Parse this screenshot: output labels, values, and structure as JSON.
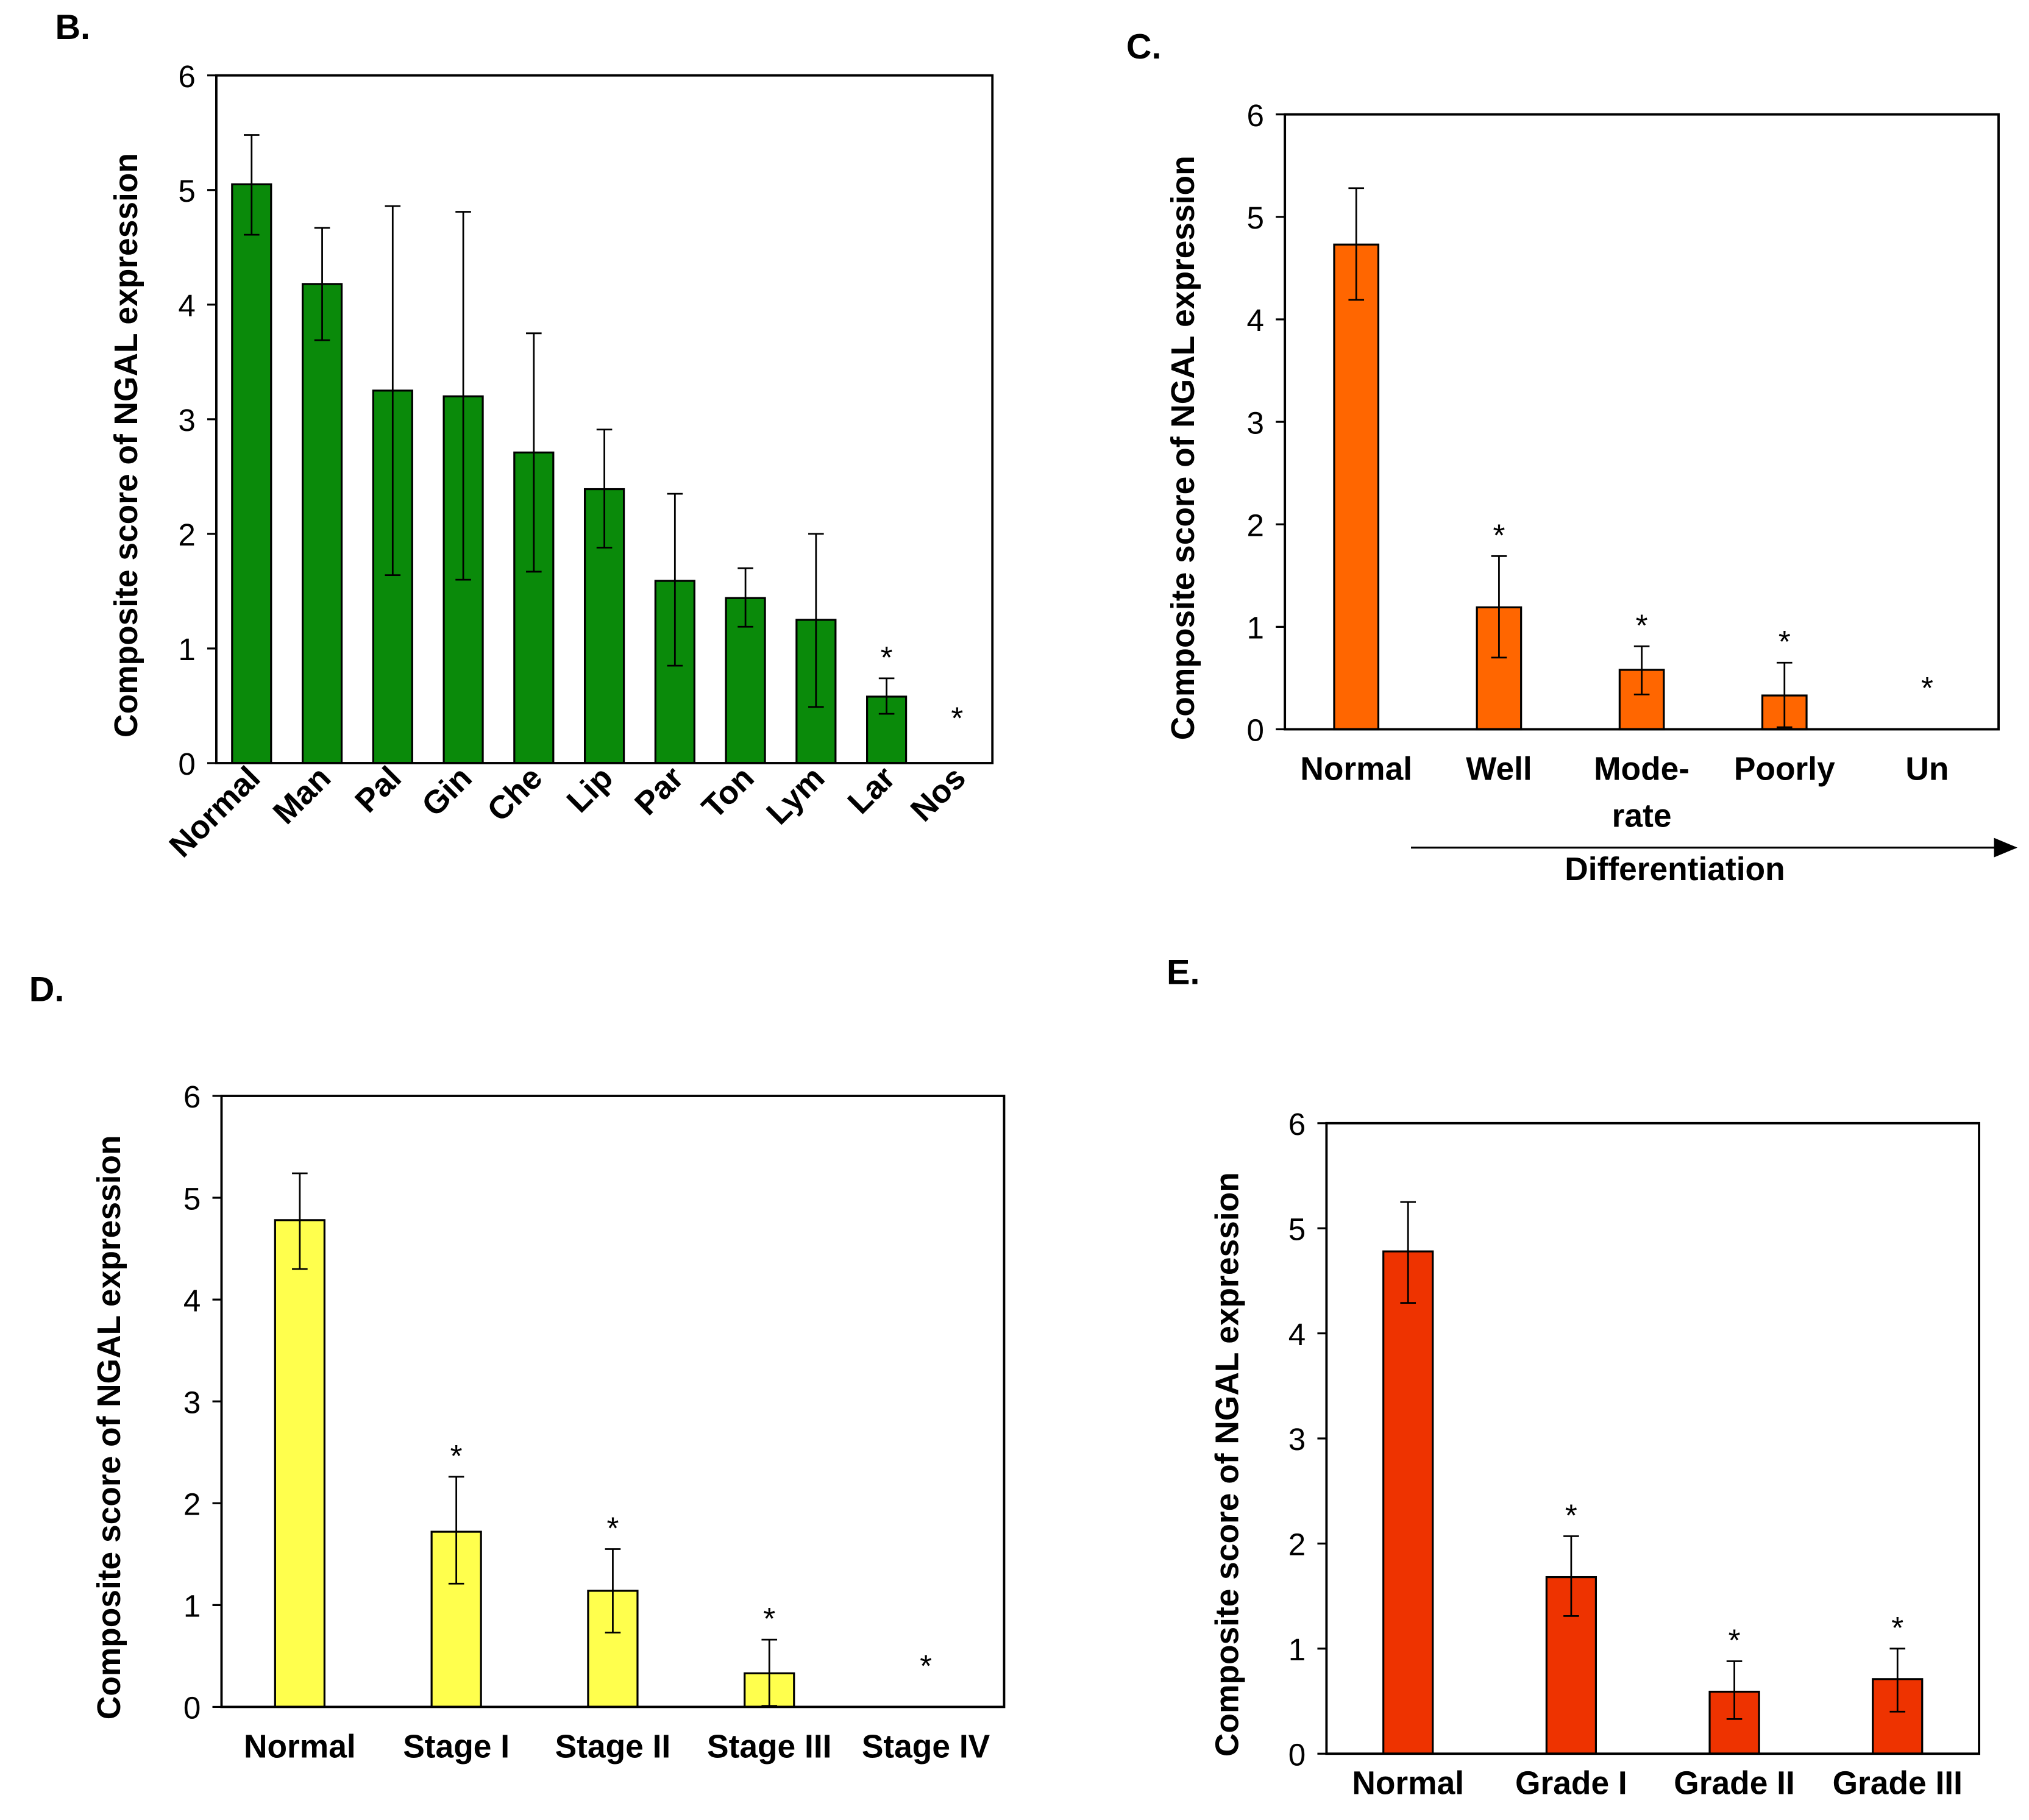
{
  "chart_data": [
    {
      "type": "bar",
      "panel": "B.",
      "ylabel": "Composite score of NGAL expression",
      "xlabel": "",
      "ylim": [
        0,
        6
      ],
      "yticks": [
        0,
        1,
        2,
        3,
        4,
        5,
        6
      ],
      "color": "#0a8a0a",
      "categories": [
        "Normal",
        "Man",
        "Pal",
        "Gin",
        "Che",
        "Lip",
        "Par",
        "Ton",
        "Lym",
        "Lar",
        "Nos"
      ],
      "values": [
        5.05,
        4.18,
        3.25,
        3.2,
        2.71,
        2.39,
        1.59,
        1.44,
        1.25,
        0.58,
        0
      ],
      "err_upper": [
        5.48,
        4.67,
        4.86,
        4.81,
        3.75,
        2.91,
        2.35,
        1.7,
        2.0,
        0.74,
        null
      ],
      "err_lower": [
        4.61,
        3.69,
        1.64,
        1.6,
        1.67,
        1.88,
        0.85,
        1.19,
        0.49,
        0.43,
        null
      ],
      "significant": [
        false,
        false,
        false,
        false,
        false,
        false,
        false,
        false,
        false,
        true,
        true
      ],
      "significance_mark": "*"
    },
    {
      "type": "bar",
      "panel": "C.",
      "ylabel": "Composite score of NGAL expression",
      "xlabel": "Differentiation",
      "ylim": [
        0,
        6
      ],
      "yticks": [
        0,
        1,
        2,
        3,
        4,
        5,
        6
      ],
      "color": "#ff6600",
      "categories": [
        "Normal",
        "Well",
        "Mode-\nrate",
        "Poorly",
        "Un"
      ],
      "values": [
        4.73,
        1.19,
        0.58,
        0.33,
        0
      ],
      "err_upper": [
        5.28,
        1.69,
        0.81,
        0.65,
        null
      ],
      "err_lower": [
        4.19,
        0.7,
        0.34,
        0.02,
        null
      ],
      "significant": [
        false,
        true,
        true,
        true,
        true
      ],
      "significance_mark": "*"
    },
    {
      "type": "bar",
      "panel": "D.",
      "ylabel": "Composite score of NGAL expression",
      "xlabel": "",
      "ylim": [
        0,
        6
      ],
      "yticks": [
        0,
        1,
        2,
        3,
        4,
        5,
        6
      ],
      "color": "#ffff4d",
      "categories": [
        "Normal",
        "Stage I",
        "Stage II",
        "Stage III",
        "Stage IV"
      ],
      "values": [
        4.78,
        1.72,
        1.14,
        0.33,
        0
      ],
      "err_upper": [
        5.24,
        2.26,
        1.55,
        0.66,
        null
      ],
      "err_lower": [
        4.3,
        1.21,
        0.73,
        0.01,
        null
      ],
      "significant": [
        false,
        true,
        true,
        true,
        true
      ],
      "significance_mark": "*"
    },
    {
      "type": "bar",
      "panel": "E.",
      "ylabel": "Composite score of NGAL expression",
      "xlabel": "",
      "ylim": [
        0,
        6
      ],
      "yticks": [
        0,
        1,
        2,
        3,
        4,
        5,
        6
      ],
      "color": "#ee3300",
      "categories": [
        "Normal",
        "Grade I",
        "Grade II",
        "Grade III"
      ],
      "values": [
        4.78,
        1.68,
        0.59,
        0.71
      ],
      "err_upper": [
        5.25,
        2.07,
        0.88,
        1.0
      ],
      "err_lower": [
        4.29,
        1.31,
        0.33,
        0.4
      ],
      "significant": [
        false,
        true,
        true,
        true
      ],
      "significance_mark": "*"
    }
  ]
}
